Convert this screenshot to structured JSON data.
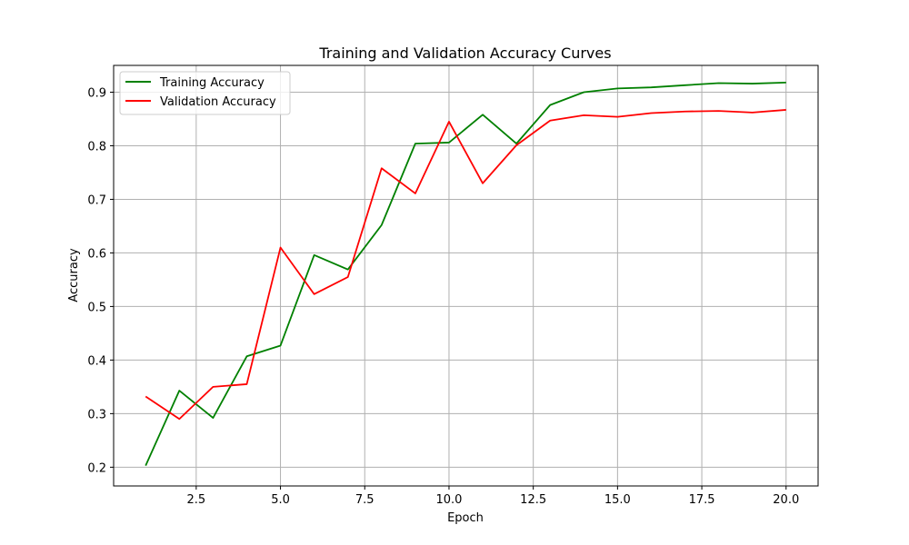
{
  "chart_data": {
    "type": "line",
    "title": "Training and Validation Accuracy Curves",
    "xlabel": "Epoch",
    "ylabel": "Accuracy",
    "x": [
      1,
      2,
      3,
      4,
      5,
      6,
      7,
      8,
      9,
      10,
      11,
      12,
      13,
      14,
      15,
      16,
      17,
      18,
      19,
      20
    ],
    "xlim": [
      0.05,
      20.95
    ],
    "ylim": [
      0.165,
      0.95
    ],
    "xticks": [
      "2.5",
      "5.0",
      "7.5",
      "10.0",
      "12.5",
      "15.0",
      "17.5",
      "20.0"
    ],
    "yticks": [
      "0.2",
      "0.3",
      "0.4",
      "0.5",
      "0.6",
      "0.7",
      "0.8",
      "0.9"
    ],
    "grid": true,
    "legend_position": "upper left",
    "series": [
      {
        "name": "Training Accuracy",
        "color": "#008000",
        "values": [
          0.203,
          0.343,
          0.292,
          0.407,
          0.427,
          0.596,
          0.569,
          0.652,
          0.804,
          0.806,
          0.858,
          0.804,
          0.876,
          0.9,
          0.907,
          0.909,
          0.913,
          0.917,
          0.916,
          0.918
        ]
      },
      {
        "name": "Validation Accuracy",
        "color": "#ff0000",
        "values": [
          0.332,
          0.29,
          0.35,
          0.355,
          0.61,
          0.523,
          0.555,
          0.758,
          0.711,
          0.845,
          0.73,
          0.801,
          0.847,
          0.857,
          0.854,
          0.861,
          0.864,
          0.865,
          0.862,
          0.867
        ]
      }
    ]
  }
}
